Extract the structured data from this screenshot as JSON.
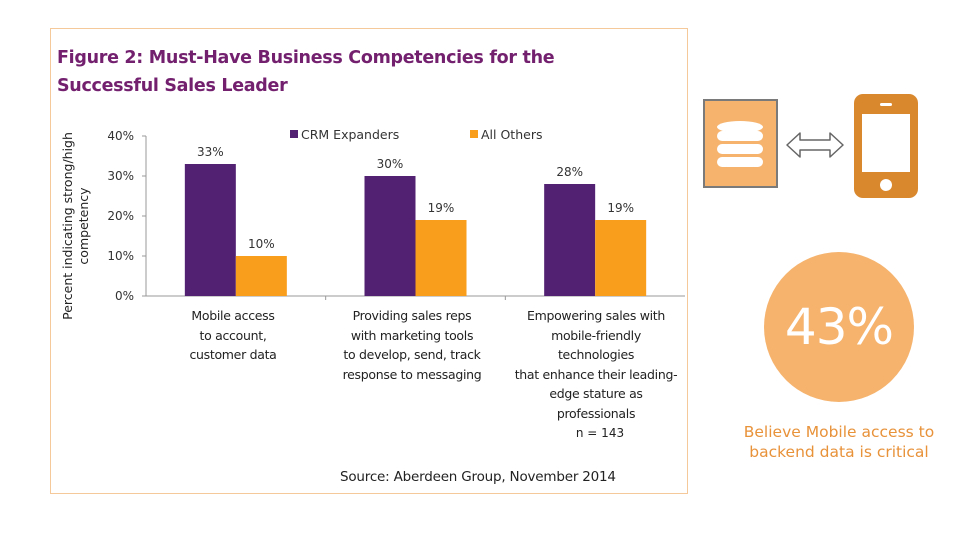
{
  "figure": {
    "title_line1": "Figure 2: Must-Have Business Competencies for the",
    "title_line2": "Successful Sales Leader",
    "source": "Source: Aberdeen Group, November 2014",
    "n_label": "n = 143"
  },
  "chart_data": {
    "type": "bar",
    "title": "Figure 2: Must-Have Business Competencies for the Successful Sales Leader",
    "xlabel": "",
    "ylabel": "Percent indicating strong/high competency",
    "ylabel_lines": [
      "Percent indicating strong/high",
      "competency"
    ],
    "ylim": [
      0,
      40
    ],
    "yticks": [
      0,
      10,
      20,
      30,
      40
    ],
    "ytick_labels": [
      "0%",
      "10%",
      "20%",
      "30%",
      "40%"
    ],
    "grid": false,
    "legend_position": "top",
    "categories": [
      "Mobile access to account, customer data",
      "Providing sales reps with marketing tools to develop, send, track response to messaging",
      "Empowering sales with mobile-friendly technologies that enhance their leading-edge stature as professionals"
    ],
    "category_lines": [
      [
        "Mobile access",
        "to account,",
        "customer data"
      ],
      [
        "Providing sales reps",
        "with marketing tools",
        "to develop, send, track",
        "response to messaging"
      ],
      [
        "Empowering sales with",
        "mobile-friendly",
        "technologies",
        "that enhance their leading-",
        "edge stature as",
        "professionals"
      ]
    ],
    "series": [
      {
        "name": "CRM Expanders",
        "color": "#532172",
        "values": [
          33,
          30,
          28
        ],
        "labels": [
          "33%",
          "30%",
          "28%"
        ]
      },
      {
        "name": "All Others",
        "color": "#f99d1c",
        "values": [
          10,
          19,
          19
        ],
        "labels": [
          "10%",
          "19%",
          "19%"
        ]
      }
    ]
  },
  "infographic": {
    "database_icon_color": "#f5b36e",
    "phone_icon_color": "#d9882e",
    "stat_value": "43%",
    "stat_color": "#f5b36e",
    "caption_line1": "Believe Mobile access to",
    "caption_line2": "backend data is critical",
    "caption_color": "#e8923a"
  }
}
